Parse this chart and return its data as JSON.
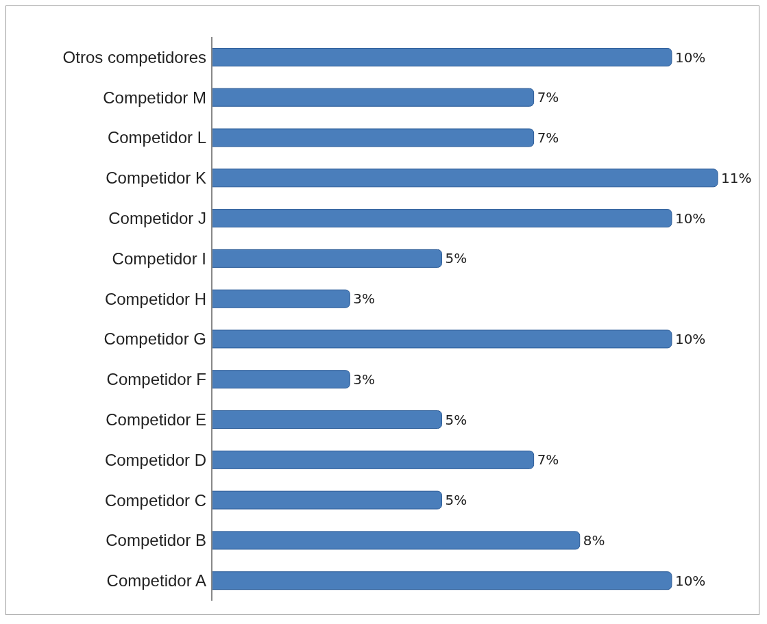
{
  "chart_data": {
    "type": "bar",
    "orientation": "horizontal",
    "categories": [
      "Otros competidores",
      "Competidor M",
      "Competidor L",
      "Competidor K",
      "Competidor J",
      "Competidor I",
      "Competidor H",
      "Competidor G",
      "Competidor F",
      "Competidor E",
      "Competidor D",
      "Competidor C",
      "Competidor B",
      "Competidor A"
    ],
    "values": [
      10,
      7,
      7,
      11,
      10,
      5,
      3,
      10,
      3,
      5,
      7,
      5,
      8,
      10
    ],
    "value_labels": [
      "10%",
      "7%",
      "7%",
      "11%",
      "10%",
      "5%",
      "3%",
      "10%",
      "3%",
      "5%",
      "7%",
      "5%",
      "8%",
      "10%"
    ],
    "color": "#4a7ebb",
    "grid": false,
    "legend": false
  }
}
